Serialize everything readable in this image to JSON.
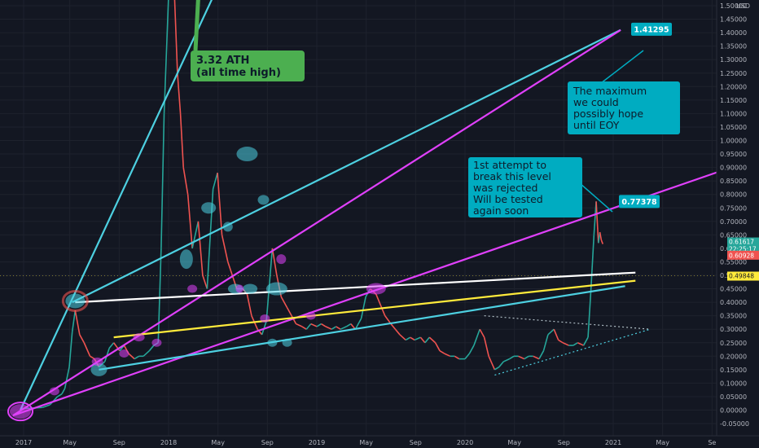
{
  "chart_data": {
    "type": "line",
    "price_axis": {
      "currency": "USD",
      "ticks": [
        "1.50000",
        "1.45000",
        "1.40000",
        "1.35000",
        "1.30000",
        "1.25000",
        "1.20000",
        "1.15000",
        "1.10000",
        "1.05000",
        "1.00000",
        "0.95000",
        "0.90000",
        "0.85000",
        "0.80000",
        "0.75000",
        "0.70000",
        "0.65000",
        "0.60000",
        "0.55000",
        "0.50000",
        "0.45000",
        "0.40000",
        "0.35000",
        "0.30000",
        "0.25000",
        "0.20000",
        "0.15000",
        "0.10000",
        "0.05000",
        "0.00000",
        "-0.05000"
      ],
      "range": [
        -0.06,
        1.56
      ]
    },
    "time_axis": {
      "ticks": [
        "2017",
        "May",
        "Sep",
        "2018",
        "May",
        "Sep",
        "2019",
        "May",
        "Sep",
        "2020",
        "May",
        "Sep",
        "2021",
        "May",
        "Se"
      ],
      "range": [
        2017.0,
        2021.9
      ]
    },
    "price_series": [
      [
        2017.0,
        0.006
      ],
      [
        2017.05,
        0.007
      ],
      [
        2017.1,
        0.008
      ],
      [
        2017.15,
        0.01
      ],
      [
        2017.2,
        0.02
      ],
      [
        2017.25,
        0.05
      ],
      [
        2017.28,
        0.06
      ],
      [
        2017.3,
        0.08
      ],
      [
        2017.33,
        0.16
      ],
      [
        2017.35,
        0.29
      ],
      [
        2017.37,
        0.37
      ],
      [
        2017.4,
        0.28
      ],
      [
        2017.43,
        0.25
      ],
      [
        2017.47,
        0.2
      ],
      [
        2017.5,
        0.19
      ],
      [
        2017.53,
        0.16
      ],
      [
        2017.57,
        0.18
      ],
      [
        2017.6,
        0.23
      ],
      [
        2017.63,
        0.25
      ],
      [
        2017.67,
        0.22
      ],
      [
        2017.7,
        0.24
      ],
      [
        2017.73,
        0.21
      ],
      [
        2017.77,
        0.19
      ],
      [
        2017.8,
        0.2
      ],
      [
        2017.83,
        0.2
      ],
      [
        2017.87,
        0.22
      ],
      [
        2017.9,
        0.24
      ],
      [
        2017.93,
        0.25
      ],
      [
        2017.95,
        0.6
      ],
      [
        2017.97,
        1.1
      ],
      [
        2018.0,
        2.3
      ],
      [
        2018.02,
        3.32
      ],
      [
        2018.04,
        1.8
      ],
      [
        2018.06,
        1.25
      ],
      [
        2018.08,
        1.1
      ],
      [
        2018.1,
        0.9
      ],
      [
        2018.13,
        0.8
      ],
      [
        2018.16,
        0.6
      ],
      [
        2018.2,
        0.7
      ],
      [
        2018.23,
        0.5
      ],
      [
        2018.26,
        0.45
      ],
      [
        2018.3,
        0.82
      ],
      [
        2018.33,
        0.88
      ],
      [
        2018.36,
        0.65
      ],
      [
        2018.4,
        0.55
      ],
      [
        2018.43,
        0.5
      ],
      [
        2018.46,
        0.45
      ],
      [
        2018.5,
        0.45
      ],
      [
        2018.53,
        0.43
      ],
      [
        2018.56,
        0.35
      ],
      [
        2018.6,
        0.3
      ],
      [
        2018.63,
        0.28
      ],
      [
        2018.66,
        0.33
      ],
      [
        2018.7,
        0.6
      ],
      [
        2018.73,
        0.5
      ],
      [
        2018.76,
        0.42
      ],
      [
        2018.8,
        0.38
      ],
      [
        2018.83,
        0.35
      ],
      [
        2018.86,
        0.32
      ],
      [
        2018.9,
        0.31
      ],
      [
        2018.93,
        0.3
      ],
      [
        2018.96,
        0.32
      ],
      [
        2019.0,
        0.31
      ],
      [
        2019.03,
        0.32
      ],
      [
        2019.06,
        0.31
      ],
      [
        2019.1,
        0.3
      ],
      [
        2019.13,
        0.31
      ],
      [
        2019.16,
        0.3
      ],
      [
        2019.2,
        0.31
      ],
      [
        2019.23,
        0.32
      ],
      [
        2019.26,
        0.3
      ],
      [
        2019.3,
        0.34
      ],
      [
        2019.33,
        0.42
      ],
      [
        2019.36,
        0.45
      ],
      [
        2019.4,
        0.43
      ],
      [
        2019.43,
        0.39
      ],
      [
        2019.46,
        0.35
      ],
      [
        2019.5,
        0.32
      ],
      [
        2019.53,
        0.3
      ],
      [
        2019.56,
        0.28
      ],
      [
        2019.6,
        0.26
      ],
      [
        2019.63,
        0.27
      ],
      [
        2019.66,
        0.26
      ],
      [
        2019.7,
        0.27
      ],
      [
        2019.73,
        0.25
      ],
      [
        2019.76,
        0.27
      ],
      [
        2019.8,
        0.25
      ],
      [
        2019.83,
        0.22
      ],
      [
        2019.86,
        0.21
      ],
      [
        2019.9,
        0.2
      ],
      [
        2019.93,
        0.2
      ],
      [
        2019.96,
        0.19
      ],
      [
        2020.0,
        0.19
      ],
      [
        2020.03,
        0.21
      ],
      [
        2020.06,
        0.24
      ],
      [
        2020.1,
        0.3
      ],
      [
        2020.13,
        0.27
      ],
      [
        2020.16,
        0.2
      ],
      [
        2020.2,
        0.15
      ],
      [
        2020.23,
        0.16
      ],
      [
        2020.26,
        0.18
      ],
      [
        2020.3,
        0.19
      ],
      [
        2020.33,
        0.2
      ],
      [
        2020.36,
        0.2
      ],
      [
        2020.4,
        0.19
      ],
      [
        2020.43,
        0.2
      ],
      [
        2020.46,
        0.2
      ],
      [
        2020.5,
        0.19
      ],
      [
        2020.53,
        0.22
      ],
      [
        2020.56,
        0.28
      ],
      [
        2020.6,
        0.3
      ],
      [
        2020.63,
        0.26
      ],
      [
        2020.66,
        0.25
      ],
      [
        2020.7,
        0.24
      ],
      [
        2020.73,
        0.24
      ],
      [
        2020.76,
        0.25
      ],
      [
        2020.8,
        0.24
      ],
      [
        2020.83,
        0.27
      ],
      [
        2020.85,
        0.45
      ],
      [
        2020.87,
        0.65
      ],
      [
        2020.885,
        0.774
      ],
      [
        2020.9,
        0.62
      ],
      [
        2020.91,
        0.66
      ],
      [
        2020.92,
        0.63
      ],
      [
        2020.93,
        0.616
      ]
    ],
    "trendlines": [
      {
        "name": "cyan-steep",
        "color": "#4dd0e1",
        "points": [
          [
            2017.0,
            0.0
          ],
          [
            2018.34,
            1.58
          ]
        ]
      },
      {
        "name": "cyan-mid",
        "color": "#4dd0e1",
        "points": [
          [
            2017.35,
            0.4
          ],
          [
            2021.05,
            1.41
          ]
        ]
      },
      {
        "name": "magenta-upper",
        "color": "#e040fb",
        "points": [
          [
            2016.95,
            -0.02
          ],
          [
            2021.05,
            1.41
          ]
        ]
      },
      {
        "name": "magenta-lower",
        "color": "#e040fb",
        "points": [
          [
            2016.95,
            -0.02
          ],
          [
            2021.9,
            0.92
          ]
        ]
      },
      {
        "name": "white-resistance",
        "color": "#ffffff",
        "points": [
          [
            2017.37,
            0.4
          ],
          [
            2021.15,
            0.51
          ]
        ]
      },
      {
        "name": "yellow-support",
        "color": "#ffeb3b",
        "points": [
          [
            2017.63,
            0.27
          ],
          [
            2021.15,
            0.48
          ]
        ]
      },
      {
        "name": "cyan-support",
        "color": "#4dd0e1",
        "points": [
          [
            2017.53,
            0.15
          ],
          [
            2021.08,
            0.46
          ]
        ]
      }
    ],
    "triangle": {
      "upper": [
        [
          2020.13,
          0.35
        ],
        [
          2021.25,
          0.3
        ]
      ],
      "lower": [
        [
          2020.2,
          0.13
        ],
        [
          2021.25,
          0.3
        ]
      ]
    },
    "annotations": {
      "ath": {
        "line1": "3.32 ATH",
        "line2": "(all time high)",
        "color": "#4caf50"
      },
      "maximum": {
        "lines": [
          "The maximum",
          "we could",
          "possibly hope",
          "until EOY"
        ],
        "color": "#00acc1"
      },
      "attempt": {
        "lines": [
          "1st attempt to",
          "break this level",
          "was rejected",
          "Will be tested",
          "again soon"
        ],
        "color": "#00acc1"
      },
      "target_badge": {
        "text": "1.41295",
        "value": 1.41295,
        "color": "#00acc1"
      },
      "rejected_badge": {
        "text": "0.77378",
        "value": 0.77378,
        "color": "#00acc1"
      }
    },
    "price_tags": {
      "current": {
        "text": "0.61617",
        "value": 0.61617,
        "color": "#26a69a"
      },
      "countdown": {
        "text": "22:25:17",
        "color": "#26a69a"
      },
      "red": {
        "text": "0.60928",
        "value": 0.60928,
        "color": "#ef5350"
      },
      "yellow": {
        "text": "0.49848",
        "value": 0.49848,
        "color": "#ffeb3b"
      }
    }
  }
}
